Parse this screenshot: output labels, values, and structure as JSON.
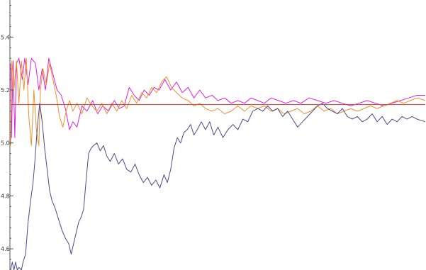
{
  "chart_data": {
    "type": "line",
    "title": "",
    "xlabel": "",
    "ylabel": "",
    "xlim": [
      0,
      1000
    ],
    "ylim": [
      4.52,
      5.54
    ],
    "y_ticks": [
      {
        "value": 4.6,
        "label": "4.6"
      },
      {
        "value": 4.8,
        "label": "4.8"
      },
      {
        "value": 5.0,
        "label": "5.0"
      },
      {
        "value": 5.2,
        "label": "5.2"
      },
      {
        "value": 5.4,
        "label": "5.4"
      }
    ],
    "y_minor_step": 0.04,
    "grid": false,
    "reference": {
      "name": "",
      "value": 5.145,
      "color": "#e0473f"
    },
    "series": [
      {
        "color": "#dd22dd",
        "points": [
          [
            0,
            5.3
          ],
          [
            2,
            5.02
          ],
          [
            6,
            5.31
          ],
          [
            10,
            5.02
          ],
          [
            14,
            5.3
          ],
          [
            20,
            5.32
          ],
          [
            28,
            5.24
          ],
          [
            34,
            5.32
          ],
          [
            42,
            5.22
          ],
          [
            50,
            5.32
          ],
          [
            60,
            5.3
          ],
          [
            68,
            5.2
          ],
          [
            76,
            5.28
          ],
          [
            84,
            5.2
          ],
          [
            92,
            5.32
          ],
          [
            102,
            5.26
          ],
          [
            112,
            5.2
          ],
          [
            122,
            5.18
          ],
          [
            132,
            5.13
          ],
          [
            142,
            5.05
          ],
          [
            150,
            5.08
          ],
          [
            160,
            5.06
          ],
          [
            172,
            5.14
          ],
          [
            184,
            5.12
          ],
          [
            198,
            5.16
          ],
          [
            210,
            5.11
          ],
          [
            222,
            5.14
          ],
          [
            236,
            5.12
          ],
          [
            250,
            5.16
          ],
          [
            262,
            5.13
          ],
          [
            274,
            5.14
          ],
          [
            286,
            5.21
          ],
          [
            298,
            5.18
          ],
          [
            310,
            5.16
          ],
          [
            322,
            5.2
          ],
          [
            334,
            5.18
          ],
          [
            346,
            5.21
          ],
          [
            358,
            5.2
          ],
          [
            372,
            5.24
          ],
          [
            386,
            5.2
          ],
          [
            400,
            5.23
          ],
          [
            414,
            5.19
          ],
          [
            428,
            5.21
          ],
          [
            442,
            5.17
          ],
          [
            456,
            5.2
          ],
          [
            470,
            5.17
          ],
          [
            486,
            5.18
          ],
          [
            500,
            5.16
          ],
          [
            516,
            5.17
          ],
          [
            532,
            5.15
          ],
          [
            548,
            5.16
          ],
          [
            564,
            5.15
          ],
          [
            580,
            5.17
          ],
          [
            596,
            5.16
          ],
          [
            612,
            5.15
          ],
          [
            628,
            5.17
          ],
          [
            646,
            5.16
          ],
          [
            664,
            5.15
          ],
          [
            682,
            5.16
          ],
          [
            700,
            5.15
          ],
          [
            720,
            5.17
          ],
          [
            740,
            5.16
          ],
          [
            760,
            5.15
          ],
          [
            780,
            5.16
          ],
          [
            800,
            5.15
          ],
          [
            820,
            5.14
          ],
          [
            840,
            5.15
          ],
          [
            860,
            5.16
          ],
          [
            880,
            5.15
          ],
          [
            900,
            5.14
          ],
          [
            920,
            5.15
          ],
          [
            940,
            5.16
          ],
          [
            960,
            5.17
          ],
          [
            980,
            5.18
          ],
          [
            1000,
            5.18
          ]
        ]
      },
      {
        "color": "#f0902a",
        "points": [
          [
            0,
            4.99
          ],
          [
            3,
            5.31
          ],
          [
            8,
            5.2
          ],
          [
            14,
            5.31
          ],
          [
            20,
            5.15
          ],
          [
            26,
            5.31
          ],
          [
            32,
            5.2
          ],
          [
            38,
            5.32
          ],
          [
            44,
            5.1
          ],
          [
            50,
            4.99
          ],
          [
            56,
            5.2
          ],
          [
            62,
            5.05
          ],
          [
            68,
            4.99
          ],
          [
            72,
            5.2
          ],
          [
            78,
            5.28
          ],
          [
            86,
            5.22
          ],
          [
            94,
            5.3
          ],
          [
            102,
            5.24
          ],
          [
            110,
            5.18
          ],
          [
            118,
            5.1
          ],
          [
            126,
            5.06
          ],
          [
            134,
            5.12
          ],
          [
            142,
            5.16
          ],
          [
            150,
            5.12
          ],
          [
            160,
            5.15
          ],
          [
            172,
            5.11
          ],
          [
            184,
            5.17
          ],
          [
            196,
            5.14
          ],
          [
            208,
            5.12
          ],
          [
            220,
            5.15
          ],
          [
            232,
            5.11
          ],
          [
            244,
            5.15
          ],
          [
            256,
            5.12
          ],
          [
            268,
            5.16
          ],
          [
            280,
            5.13
          ],
          [
            292,
            5.18
          ],
          [
            304,
            5.15
          ],
          [
            316,
            5.19
          ],
          [
            328,
            5.17
          ],
          [
            340,
            5.21
          ],
          [
            352,
            5.19
          ],
          [
            364,
            5.23
          ],
          [
            376,
            5.25
          ],
          [
            388,
            5.21
          ],
          [
            400,
            5.19
          ],
          [
            414,
            5.17
          ],
          [
            428,
            5.16
          ],
          [
            442,
            5.14
          ],
          [
            456,
            5.15
          ],
          [
            470,
            5.13
          ],
          [
            486,
            5.12
          ],
          [
            500,
            5.13
          ],
          [
            516,
            5.11
          ],
          [
            532,
            5.12
          ],
          [
            548,
            5.14
          ],
          [
            564,
            5.12
          ],
          [
            580,
            5.14
          ],
          [
            596,
            5.13
          ],
          [
            612,
            5.14
          ],
          [
            628,
            5.12
          ],
          [
            644,
            5.13
          ],
          [
            660,
            5.11
          ],
          [
            676,
            5.12
          ],
          [
            692,
            5.13
          ],
          [
            708,
            5.11
          ],
          [
            724,
            5.12
          ],
          [
            740,
            5.14
          ],
          [
            756,
            5.12
          ],
          [
            772,
            5.13
          ],
          [
            788,
            5.11
          ],
          [
            804,
            5.12
          ],
          [
            820,
            5.13
          ],
          [
            836,
            5.12
          ],
          [
            852,
            5.13
          ],
          [
            868,
            5.14
          ],
          [
            884,
            5.13
          ],
          [
            900,
            5.14
          ],
          [
            916,
            5.15
          ],
          [
            932,
            5.16
          ],
          [
            948,
            5.15
          ],
          [
            964,
            5.16
          ],
          [
            980,
            5.17
          ],
          [
            1000,
            5.16
          ]
        ]
      },
      {
        "color": "#4b4b8e",
        "points": [
          [
            0,
            4.52
          ],
          [
            4,
            4.55
          ],
          [
            8,
            4.52
          ],
          [
            12,
            4.55
          ],
          [
            16,
            4.52
          ],
          [
            20,
            4.53
          ],
          [
            26,
            4.52
          ],
          [
            30,
            4.55
          ],
          [
            36,
            4.58
          ],
          [
            42,
            4.7
          ],
          [
            48,
            4.78
          ],
          [
            54,
            4.85
          ],
          [
            58,
            4.92
          ],
          [
            64,
            5.05
          ],
          [
            70,
            5.15
          ],
          [
            76,
            5.08
          ],
          [
            82,
            4.98
          ],
          [
            88,
            4.9
          ],
          [
            94,
            4.82
          ],
          [
            100,
            4.78
          ],
          [
            106,
            4.76
          ],
          [
            112,
            4.73
          ],
          [
            118,
            4.7
          ],
          [
            124,
            4.67
          ],
          [
            132,
            4.64
          ],
          [
            140,
            4.62
          ],
          [
            146,
            4.58
          ],
          [
            152,
            4.62
          ],
          [
            158,
            4.66
          ],
          [
            164,
            4.7
          ],
          [
            170,
            4.72
          ],
          [
            176,
            4.75
          ],
          [
            182,
            4.86
          ],
          [
            188,
            4.96
          ],
          [
            194,
            4.98
          ],
          [
            200,
            4.99
          ],
          [
            208,
            5.0
          ],
          [
            216,
            4.97
          ],
          [
            224,
            4.99
          ],
          [
            232,
            4.95
          ],
          [
            240,
            4.93
          ],
          [
            250,
            4.96
          ],
          [
            260,
            4.92
          ],
          [
            270,
            4.94
          ],
          [
            280,
            4.9
          ],
          [
            290,
            4.89
          ],
          [
            300,
            4.92
          ],
          [
            310,
            4.88
          ],
          [
            320,
            4.85
          ],
          [
            330,
            4.87
          ],
          [
            340,
            4.84
          ],
          [
            350,
            4.86
          ],
          [
            360,
            4.83
          ],
          [
            370,
            4.88
          ],
          [
            378,
            4.85
          ],
          [
            386,
            4.9
          ],
          [
            394,
            4.98
          ],
          [
            402,
            5.02
          ],
          [
            410,
            5.0
          ],
          [
            418,
            5.04
          ],
          [
            426,
            5.05
          ],
          [
            434,
            5.07
          ],
          [
            442,
            5.03
          ],
          [
            450,
            5.05
          ],
          [
            460,
            5.08
          ],
          [
            470,
            5.05
          ],
          [
            480,
            5.08
          ],
          [
            490,
            5.03
          ],
          [
            500,
            5.06
          ],
          [
            512,
            5.02
          ],
          [
            524,
            5.05
          ],
          [
            536,
            5.07
          ],
          [
            548,
            5.05
          ],
          [
            560,
            5.09
          ],
          [
            572,
            5.08
          ],
          [
            584,
            5.12
          ],
          [
            596,
            5.13
          ],
          [
            608,
            5.12
          ],
          [
            620,
            5.14
          ],
          [
            632,
            5.12
          ],
          [
            644,
            5.13
          ],
          [
            656,
            5.1
          ],
          [
            668,
            5.12
          ],
          [
            680,
            5.09
          ],
          [
            692,
            5.06
          ],
          [
            704,
            5.08
          ],
          [
            716,
            5.1
          ],
          [
            728,
            5.12
          ],
          [
            740,
            5.14
          ],
          [
            752,
            5.15
          ],
          [
            764,
            5.13
          ],
          [
            776,
            5.12
          ],
          [
            788,
            5.11
          ],
          [
            800,
            5.13
          ],
          [
            812,
            5.1
          ],
          [
            824,
            5.09
          ],
          [
            836,
            5.1
          ],
          [
            848,
            5.08
          ],
          [
            860,
            5.09
          ],
          [
            872,
            5.11
          ],
          [
            884,
            5.08
          ],
          [
            896,
            5.1
          ],
          [
            908,
            5.07
          ],
          [
            920,
            5.09
          ],
          [
            932,
            5.08
          ],
          [
            944,
            5.1
          ],
          [
            956,
            5.09
          ],
          [
            968,
            5.1
          ],
          [
            980,
            5.09
          ],
          [
            1000,
            5.08
          ]
        ]
      }
    ]
  }
}
